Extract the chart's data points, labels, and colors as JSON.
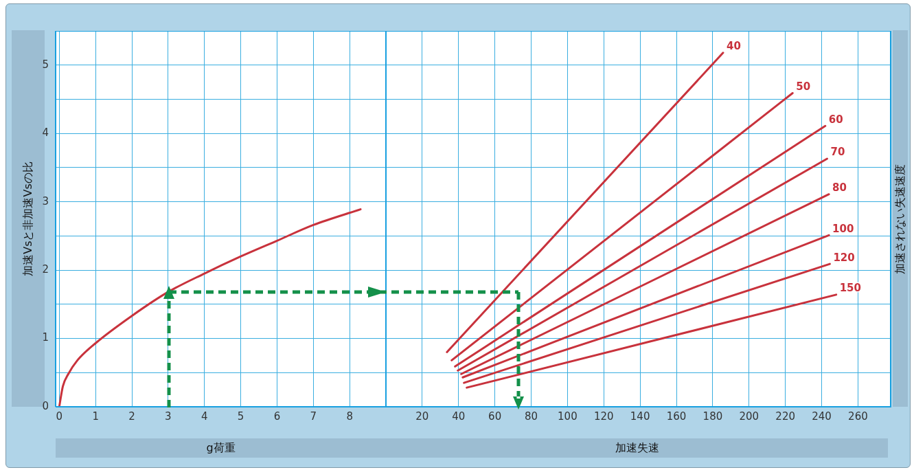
{
  "chart_data": [
    {
      "type": "line",
      "xlabel": "g荷重",
      "ylabel": "加速Vsと非加速Vsの比",
      "xlim": [
        -0.1,
        9
      ],
      "xticks": [
        0,
        1,
        2,
        3,
        4,
        5,
        6,
        7,
        8,
        {
          "value": 9,
          "label": null
        }
      ],
      "ylim": [
        0,
        5.5
      ],
      "yticks": [
        0,
        {
          "value": 0.5,
          "label": null
        },
        1,
        {
          "value": 1.5,
          "label": null
        },
        2,
        {
          "value": 2.5,
          "label": null
        },
        3,
        {
          "value": 3.5,
          "label": null
        },
        4,
        {
          "value": 4.5,
          "label": null
        },
        5
      ],
      "grid": true,
      "series": [
        {
          "color": "#c8323c",
          "x": [
            0,
            0.1,
            0.25,
            0.5,
            1,
            2,
            3,
            4,
            5,
            6,
            7,
            8.3
          ],
          "values": [
            0,
            0.3,
            0.48,
            0.68,
            0.93,
            1.33,
            1.68,
            1.95,
            2.2,
            2.43,
            2.66,
            2.89
          ]
        }
      ]
    },
    {
      "type": "line",
      "xlabel": "加速失速",
      "legend_title": "加速されない失速速度",
      "xlim": [
        0,
        278
      ],
      "xticks": [
        {
          "value": 0,
          "label": null
        },
        20,
        40,
        60,
        80,
        100,
        120,
        140,
        160,
        180,
        200,
        220,
        240,
        260
      ],
      "ylim": [
        0,
        5.5
      ],
      "yticks": [
        0,
        {
          "value": 0.5,
          "label": null
        },
        1,
        {
          "value": 1.5,
          "label": null
        },
        2,
        {
          "value": 2.5,
          "label": null
        },
        3,
        {
          "value": 3.5,
          "label": null
        },
        4,
        {
          "value": 4.5,
          "label": null
        },
        5
      ],
      "grid": true,
      "tick_labels": "x",
      "series": [
        {
          "name": "40",
          "color": "#c8323c",
          "x": [
            33.6,
            185.7
          ],
          "values": [
            0.8,
            5.18
          ]
        },
        {
          "name": "50",
          "color": "#c8323c",
          "x": [
            36.2,
            224
          ],
          "values": [
            0.68,
            4.59
          ]
        },
        {
          "name": "60",
          "color": "#c8323c",
          "x": [
            38.1,
            242
          ],
          "values": [
            0.59,
            4.11
          ]
        },
        {
          "name": "70",
          "color": "#c8323c",
          "x": [
            39.6,
            243
          ],
          "values": [
            0.53,
            3.63
          ]
        },
        {
          "name": "80",
          "color": "#c8323c",
          "x": [
            41.5,
            244
          ],
          "values": [
            0.48,
            3.11
          ]
        },
        {
          "name": "100",
          "color": "#c8323c",
          "x": [
            42.3,
            244
          ],
          "values": [
            0.43,
            2.51
          ]
        },
        {
          "name": "120",
          "color": "#c8323c",
          "x": [
            43,
            244.5
          ],
          "values": [
            0.35,
            2.09
          ]
        },
        {
          "name": "150",
          "color": "#c8323c",
          "x": [
            44.5,
            248
          ],
          "values": [
            0.28,
            1.64
          ]
        }
      ]
    }
  ]
}
